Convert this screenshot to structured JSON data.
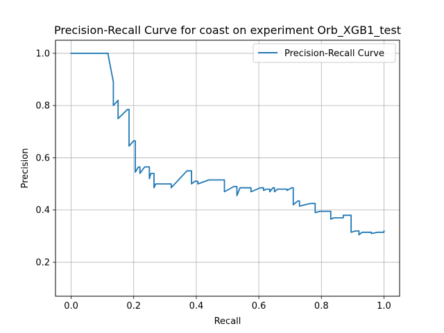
{
  "chart_data": {
    "type": "line",
    "title": "Precision-Recall Curve for coast on experiment Orb_XGB1_test",
    "xlabel": "Recall",
    "ylabel": "Precision",
    "xlim": [
      -0.05,
      1.05
    ],
    "ylim": [
      0.07,
      1.05
    ],
    "xticks": [
      "0.0",
      "0.2",
      "0.4",
      "0.6",
      "0.8",
      "1.0"
    ],
    "yticks": [
      "0.2",
      "0.4",
      "0.6",
      "0.8",
      "1.0"
    ],
    "grid": true,
    "legend_position": "top-right",
    "line_color": "#1f77b4",
    "series": [
      {
        "name": "Precision-Recall Curve",
        "x": [
          0.0,
          0.118,
          0.118,
          0.135,
          0.135,
          0.15,
          0.15,
          0.15,
          0.18,
          0.18,
          0.185,
          0.185,
          0.2,
          0.2,
          0.205,
          0.205,
          0.215,
          0.215,
          0.22,
          0.22,
          0.235,
          0.235,
          0.25,
          0.25,
          0.255,
          0.255,
          0.265,
          0.265,
          0.27,
          0.27,
          0.32,
          0.32,
          0.37,
          0.37,
          0.385,
          0.385,
          0.395,
          0.395,
          0.405,
          0.405,
          0.44,
          0.44,
          0.49,
          0.49,
          0.52,
          0.52,
          0.53,
          0.53,
          0.54,
          0.54,
          0.575,
          0.575,
          0.605,
          0.605,
          0.615,
          0.615,
          0.625,
          0.625,
          0.635,
          0.635,
          0.645,
          0.645,
          0.65,
          0.65,
          0.66,
          0.66,
          0.69,
          0.69,
          0.705,
          0.705,
          0.71,
          0.71,
          0.725,
          0.725,
          0.73,
          0.73,
          0.765,
          0.765,
          0.78,
          0.78,
          0.795,
          0.795,
          0.83,
          0.83,
          0.84,
          0.84,
          0.87,
          0.87,
          0.885,
          0.885,
          0.895,
          0.895,
          0.91,
          0.91,
          0.92,
          0.92,
          0.93,
          0.93,
          0.96,
          0.96,
          0.98,
          0.98,
          1.0,
          1.0
        ],
        "y": [
          1.0,
          1.0,
          0.995,
          0.89,
          0.8,
          0.82,
          0.82,
          0.75,
          0.785,
          0.785,
          0.785,
          0.645,
          0.665,
          0.665,
          0.665,
          0.545,
          0.565,
          0.565,
          0.565,
          0.54,
          0.565,
          0.565,
          0.565,
          0.52,
          0.54,
          0.54,
          0.54,
          0.485,
          0.5,
          0.5,
          0.5,
          0.485,
          0.55,
          0.55,
          0.55,
          0.5,
          0.51,
          0.51,
          0.51,
          0.5,
          0.515,
          0.515,
          0.515,
          0.47,
          0.49,
          0.49,
          0.49,
          0.455,
          0.485,
          0.485,
          0.485,
          0.47,
          0.485,
          0.485,
          0.485,
          0.475,
          0.48,
          0.48,
          0.48,
          0.47,
          0.485,
          0.485,
          0.485,
          0.47,
          0.48,
          0.48,
          0.48,
          0.475,
          0.485,
          0.485,
          0.485,
          0.42,
          0.435,
          0.435,
          0.435,
          0.415,
          0.425,
          0.425,
          0.425,
          0.39,
          0.395,
          0.395,
          0.395,
          0.365,
          0.37,
          0.37,
          0.37,
          0.38,
          0.38,
          0.38,
          0.38,
          0.315,
          0.32,
          0.32,
          0.32,
          0.305,
          0.315,
          0.315,
          0.315,
          0.31,
          0.315,
          0.315,
          0.315,
          0.32
        ]
      }
    ]
  }
}
